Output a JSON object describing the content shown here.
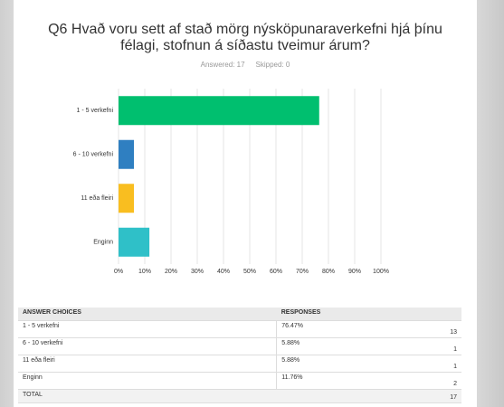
{
  "chart_data": {
    "type": "bar",
    "orientation": "horizontal",
    "title": "Q6 Hvað voru sett af stað mörg nýsköpunaraverkefni hjá þínu félagi, stofnun á síðastu tveimur árum?",
    "answered": "Answered: 17",
    "skipped": "Skipped: 0",
    "categories": [
      "1 - 5 verkefni",
      "6 - 10 verkefni",
      "11 eða fleiri",
      "Enginn"
    ],
    "values": [
      76.47,
      5.88,
      5.88,
      11.76
    ],
    "colors": [
      "#00bf6f",
      "#2f7fc1",
      "#f9be20",
      "#2fc0c8"
    ],
    "xlim": [
      0,
      100
    ],
    "xticks": [
      {
        "value": 0,
        "label": "0%"
      },
      {
        "value": 10,
        "label": "10%"
      },
      {
        "value": 20,
        "label": "20%"
      },
      {
        "value": 30,
        "label": "30%"
      },
      {
        "value": 40,
        "label": "40%"
      },
      {
        "value": 50,
        "label": "50%"
      },
      {
        "value": 60,
        "label": "60%"
      },
      {
        "value": 70,
        "label": "70%"
      },
      {
        "value": 80,
        "label": "80%"
      },
      {
        "value": 90,
        "label": "90%"
      },
      {
        "value": 100,
        "label": "100%"
      }
    ],
    "grid": true
  },
  "table": {
    "header": [
      "ANSWER CHOICES",
      "RESPONSES"
    ],
    "rows": [
      [
        "1 - 5 verkefni",
        "76.47%",
        13
      ],
      [
        "6 - 10 verkefni",
        "5.88%",
        1
      ],
      [
        "11 eða fleiri",
        "5.88%",
        1
      ],
      [
        "Enginn",
        "11.76%",
        2
      ]
    ],
    "total": [
      "TOTAL",
      17
    ]
  }
}
